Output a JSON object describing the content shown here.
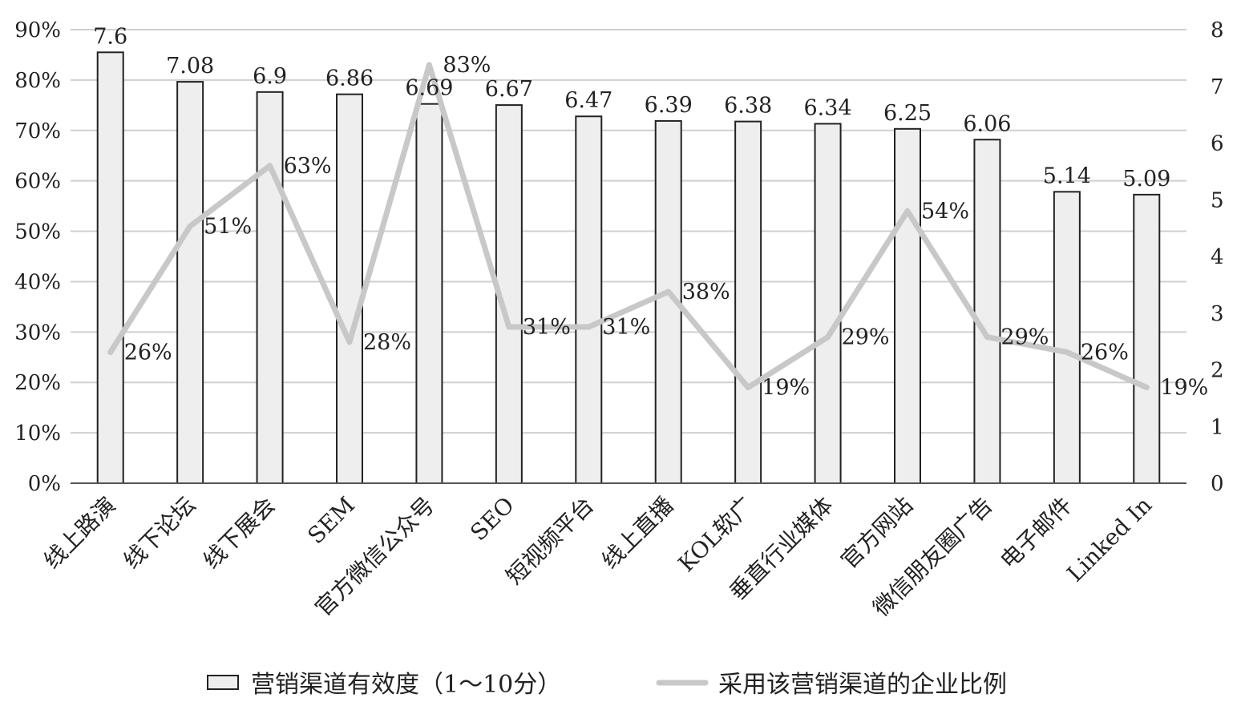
{
  "chart_data": {
    "type": "bar",
    "categories": [
      "线上路演",
      "线下论坛",
      "线下展会",
      "SEM",
      "官方微信公众号",
      "SEO",
      "短视频平台",
      "线上直播",
      "KOL软广",
      "垂直行业媒体",
      "官方网站",
      "微信朋友圈广告",
      "电子邮件",
      "Linked In"
    ],
    "series": [
      {
        "name": "营销渠道有效度（1～10分）",
        "type": "bar",
        "axis": "right",
        "values": [
          7.6,
          7.08,
          6.9,
          6.86,
          6.69,
          6.67,
          6.47,
          6.39,
          6.38,
          6.34,
          6.25,
          6.06,
          5.14,
          5.09
        ],
        "labels": [
          "7.6",
          "7.08",
          "6.9",
          "6.86",
          "6.69",
          "6.67",
          "6.47",
          "6.39",
          "6.38",
          "6.34",
          "6.25",
          "6.06",
          "5.14",
          "5.09"
        ],
        "color": "#eeeeee"
      },
      {
        "name": "采用该营销渠道的企业比例",
        "type": "line",
        "axis": "left",
        "values": [
          26,
          51,
          63,
          28,
          83,
          31,
          31,
          38,
          19,
          29,
          54,
          29,
          26,
          19
        ],
        "labels": [
          "26%",
          "51%",
          "63%",
          "28%",
          "83%",
          "31%",
          "31%",
          "38%",
          "19%",
          "29%",
          "54%",
          "29%",
          "26%",
          "19%"
        ],
        "color": "#c8c8c8"
      }
    ],
    "y_left": {
      "ticks": [
        "0%",
        "10%",
        "20%",
        "30%",
        "40%",
        "50%",
        "60%",
        "70%",
        "80%",
        "90%"
      ],
      "ylim": [
        0,
        90
      ]
    },
    "y_right": {
      "ticks": [
        "0",
        "1",
        "2",
        "3",
        "4",
        "5",
        "6",
        "7",
        "8"
      ],
      "ylim": [
        0,
        8
      ]
    },
    "grid": true,
    "legend_position": "bottom",
    "title": "",
    "xlabel": "",
    "ylabel": ""
  }
}
